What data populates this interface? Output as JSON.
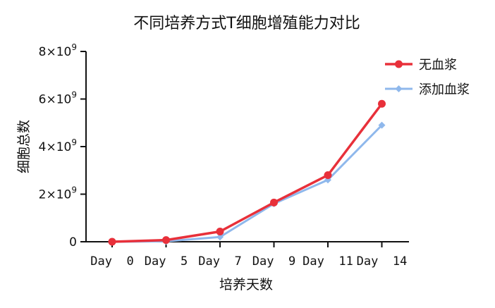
{
  "chart_data": {
    "type": "line",
    "title": "不同培养方式T细胞增殖能力对比",
    "xlabel": "培养天数",
    "ylabel": "细胞总数",
    "categories": [
      "Day  0",
      "Day  5",
      "Day  7",
      "Day  9",
      "Day  11",
      "Day  14"
    ],
    "ylim": [
      0,
      8000000000
    ],
    "yticks": [
      {
        "value": 0,
        "label": "0",
        "exp": ""
      },
      {
        "value": 2000000000,
        "label": "2×10",
        "exp": "9"
      },
      {
        "value": 4000000000,
        "label": "4×10",
        "exp": "9"
      },
      {
        "value": 6000000000,
        "label": "6×10",
        "exp": "9"
      },
      {
        "value": 8000000000,
        "label": "8×10",
        "exp": "9"
      }
    ],
    "series": [
      {
        "name": "无血浆",
        "color": "#e8303a",
        "marker": "circle",
        "values": [
          0,
          70000000,
          430000000,
          1650000000,
          2800000000,
          5800000000
        ]
      },
      {
        "name": "添加血浆",
        "color": "#8fb8ec",
        "marker": "diamond",
        "values": [
          0,
          20000000,
          200000000,
          1600000000,
          2600000000,
          4900000000
        ]
      }
    ],
    "legend_position": "top-right",
    "grid": false
  }
}
